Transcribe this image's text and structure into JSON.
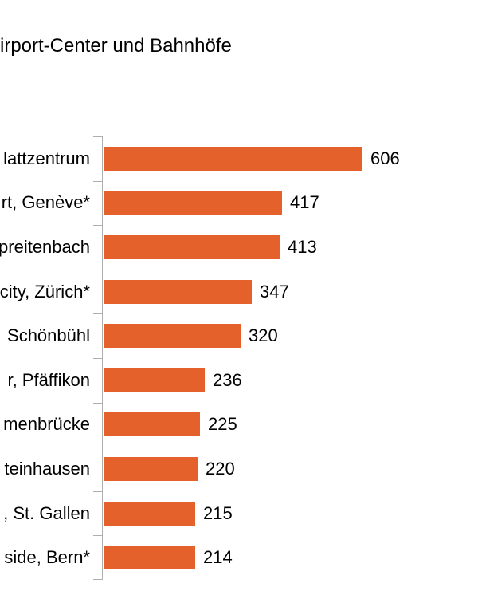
{
  "title": "irport-Center und Bahnhöfe",
  "colors": {
    "bar": "#E5612B",
    "axis": "#AFAFAF",
    "text": "#000000",
    "background": "#FFFFFF"
  },
  "chart_data": {
    "type": "bar",
    "orientation": "horizontal",
    "title": "irport-Center und Bahnhöfe",
    "categories": [
      "lattzentrum",
      "rt, Genève*",
      "preitenbach",
      "city, Zürich*",
      "Schönbühl",
      "r, Pfäffikon",
      "menbrücke",
      "teinhausen",
      ", St. Gallen",
      "side, Bern*"
    ],
    "values": [
      606,
      417,
      413,
      347,
      320,
      236,
      225,
      220,
      215,
      214
    ],
    "value_labels_shown": true,
    "x_axis_tick_labels_shown": false,
    "grid": false,
    "legend": false
  }
}
